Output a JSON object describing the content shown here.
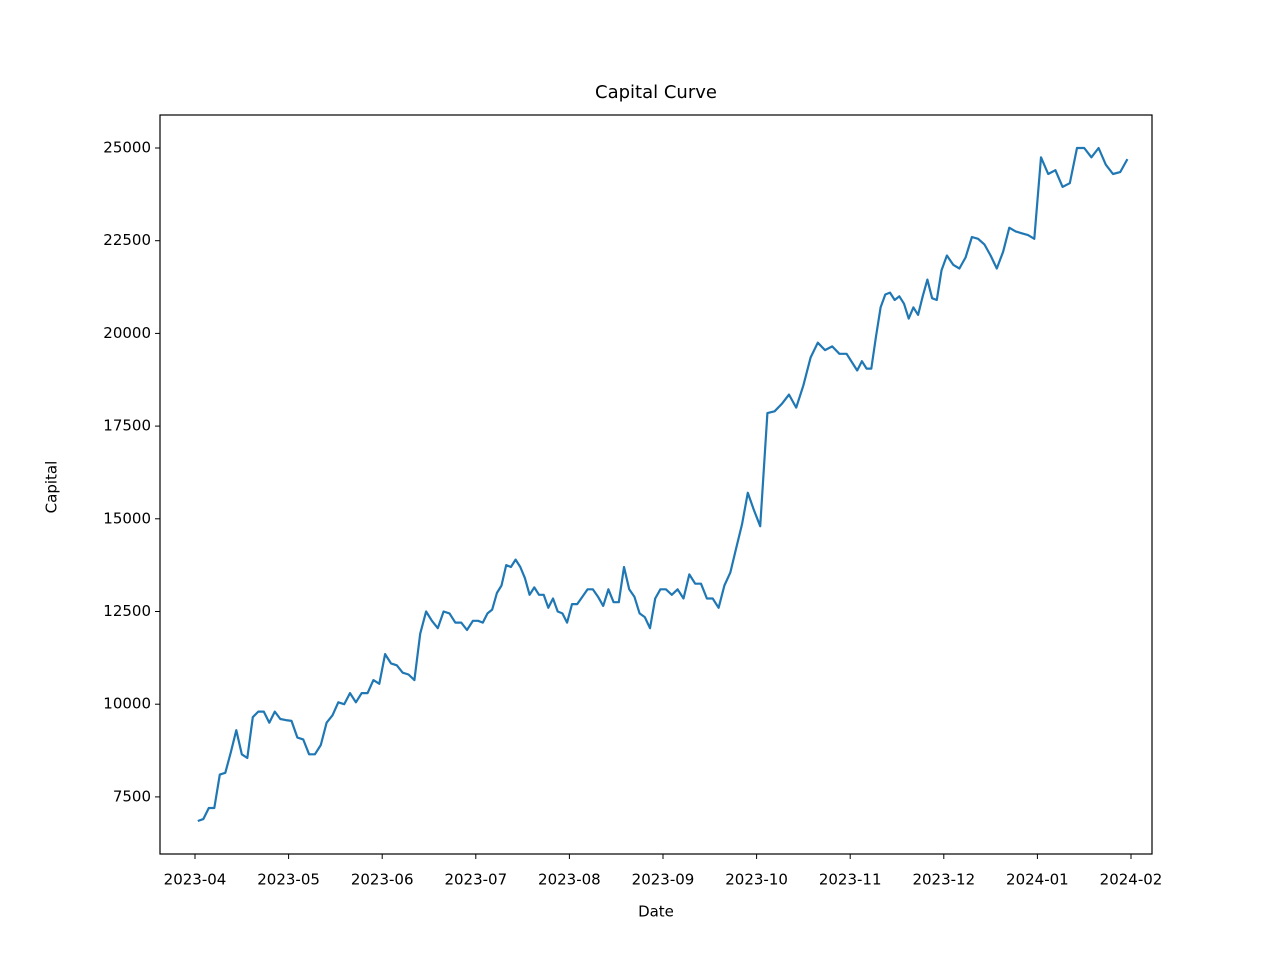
{
  "chart_data": {
    "type": "line",
    "title": "Capital Curve",
    "xlabel": "Date",
    "ylabel": "Capital",
    "color": "#1f77b4",
    "x": [
      "2023-04",
      "2023-04",
      "2023-04",
      "2023-04",
      "2023-04",
      "2023-04",
      "2023-04",
      "2023-04",
      "2023-04",
      "2023-04",
      "2023-04",
      "2023-04",
      "2023-04",
      "2023-04",
      "2023-04",
      "2023-04",
      "2023-04",
      "2023-05",
      "2023-05",
      "2023-05",
      "2023-05",
      "2023-05",
      "2023-05",
      "2023-05",
      "2023-05",
      "2023-05",
      "2023-05",
      "2023-05",
      "2023-05",
      "2023-05",
      "2023-05",
      "2023-05",
      "2023-05",
      "2023-06",
      "2023-06",
      "2023-06",
      "2023-06",
      "2023-06",
      "2023-06",
      "2023-06",
      "2023-06",
      "2023-06",
      "2023-06",
      "2023-06",
      "2023-06",
      "2023-06",
      "2023-06",
      "2023-06",
      "2023-06",
      "2023-07",
      "2023-07",
      "2023-07",
      "2023-07",
      "2023-07",
      "2023-07",
      "2023-07",
      "2023-07",
      "2023-07",
      "2023-07",
      "2023-07",
      "2023-07",
      "2023-07",
      "2023-07",
      "2023-07",
      "2023-07",
      "2023-07",
      "2023-07",
      "2023-07",
      "2023-07",
      "2023-08",
      "2023-08",
      "2023-08",
      "2023-08",
      "2023-08",
      "2023-08",
      "2023-08",
      "2023-08",
      "2023-08",
      "2023-08",
      "2023-08",
      "2023-08",
      "2023-08",
      "2023-08",
      "2023-08",
      "2023-08",
      "2023-08",
      "2023-08",
      "2023-09",
      "2023-09",
      "2023-09",
      "2023-09",
      "2023-09",
      "2023-09",
      "2023-09",
      "2023-09",
      "2023-09",
      "2023-09",
      "2023-09",
      "2023-09",
      "2023-09",
      "2023-09",
      "2023-09",
      "2023-09",
      "2023-10",
      "2023-10",
      "2023-10",
      "2023-10",
      "2023-10",
      "2023-10",
      "2023-10",
      "2023-10",
      "2023-10",
      "2023-10",
      "2023-10",
      "2023-10",
      "2023-10",
      "2023-11",
      "2023-11",
      "2023-11",
      "2023-11",
      "2023-11",
      "2023-11",
      "2023-11",
      "2023-11",
      "2023-11",
      "2023-11",
      "2023-11",
      "2023-11",
      "2023-11",
      "2023-11",
      "2023-11",
      "2023-11",
      "2023-11",
      "2023-11",
      "2023-11",
      "2023-11",
      "2023-12",
      "2023-12",
      "2023-12",
      "2023-12",
      "2023-12",
      "2023-12",
      "2023-12",
      "2023-12",
      "2023-12",
      "2023-12",
      "2023-12",
      "2023-12",
      "2023-12",
      "2023-12",
      "2023-12",
      "2024-01",
      "2024-01",
      "2024-01",
      "2024-01",
      "2024-01",
      "2024-01",
      "2024-01",
      "2024-01",
      "2024-01",
      "2024-01",
      "2024-01",
      "2024-01",
      "2024-01"
    ],
    "values": [
      6850,
      6900,
      7200,
      7200,
      8100,
      8150,
      8700,
      9300,
      8650,
      8550,
      9650,
      9800,
      9800,
      9500,
      9800,
      9600,
      9570,
      9550,
      9100,
      9050,
      8650,
      8650,
      8900,
      9500,
      9700,
      10050,
      10000,
      10300,
      10050,
      10300,
      10300,
      10650,
      10550,
      11350,
      11100,
      11050,
      10850,
      10800,
      10650,
      11900,
      12500,
      12250,
      12050,
      12500,
      12450,
      12200,
      12200,
      12000,
      12250,
      12250,
      12200,
      12450,
      12550,
      13000,
      13200,
      13750,
      13700,
      13900,
      13700,
      13400,
      12950,
      13150,
      12950,
      12950,
      12600,
      12850,
      12500,
      12450,
      12200,
      12700,
      12700,
      12900,
      13100,
      13100,
      12900,
      12650,
      13100,
      12750,
      12750,
      13700,
      13100,
      12900,
      12450,
      12350,
      12050,
      12850,
      13100,
      13100,
      12950,
      13100,
      12850,
      13500,
      13250,
      13250,
      12850,
      12850,
      12600,
      13200,
      13550,
      14200,
      14850,
      15700,
      15250,
      14800,
      17850,
      17900,
      18100,
      18350,
      18000,
      18600,
      19350,
      19750,
      19550,
      19650,
      19450,
      19450,
      19200,
      19000,
      19250,
      19050,
      19050,
      19900,
      20700,
      21050,
      21100,
      20900,
      21000,
      20800,
      20400,
      20700,
      20500,
      21000,
      21450,
      20950,
      20900,
      21700,
      22100,
      21850,
      21750,
      22050,
      22600,
      22550,
      22400,
      22100,
      21750,
      22200,
      22850,
      22750,
      22700,
      22650,
      22550,
      24750,
      24300,
      24400,
      23950,
      24050,
      25000,
      25000,
      24750,
      25000,
      24550,
      24300,
      24350,
      24700
    ],
    "xticks": [
      "2023-04",
      "2023-05",
      "2023-06",
      "2023-07",
      "2023-08",
      "2023-09",
      "2023-10",
      "2023-11",
      "2023-12",
      "2024-01",
      "2024-02"
    ],
    "ylim": [
      5960,
      25890
    ],
    "yticks": [
      7500,
      10000,
      12500,
      15000,
      17500,
      20000,
      22500,
      25000
    ]
  }
}
